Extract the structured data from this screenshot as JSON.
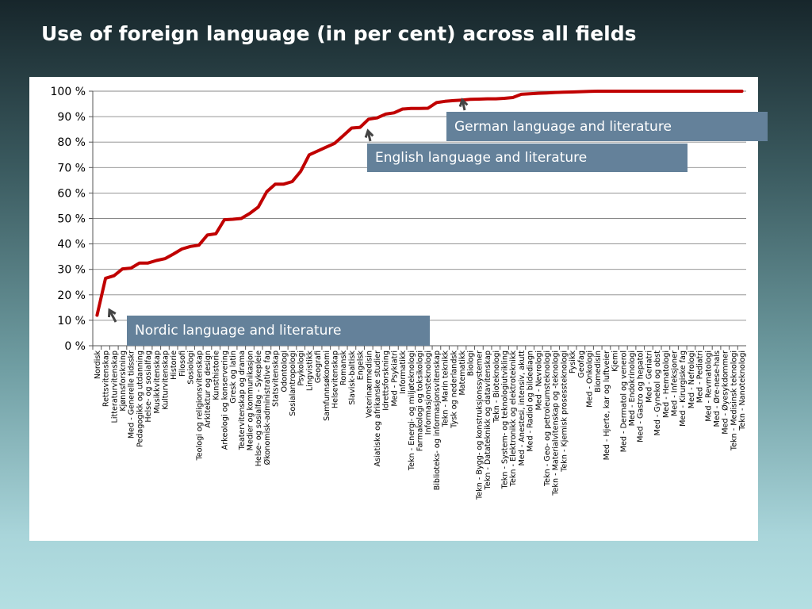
{
  "slide": {
    "title": "Use of foreign language (in per cent) across all fields"
  },
  "callouts": {
    "german": "German language and literature",
    "english": "English language and literature",
    "nordic": "Nordic language and literature"
  },
  "colors": {
    "line": "#c00000",
    "callout_bg": "#64819a",
    "arrow": "#444444"
  },
  "chart_data": {
    "type": "line",
    "title": "",
    "xlabel": "",
    "ylabel": "",
    "ylim": [
      0,
      100
    ],
    "y_ticks": [
      "0 %",
      "10 %",
      "20 %",
      "30 %",
      "40 %",
      "50 %",
      "60 %",
      "70 %",
      "80 %",
      "90 %",
      "100 %"
    ],
    "grid": true,
    "categories": [
      "Nordisk",
      "Rettsvitenskap",
      "Litteraturvitenskap",
      "Kjønnsforskning",
      "Med - Generelle tidsskr",
      "Pedagogikk og utdanning",
      "Helse- og sosialfag",
      "Musikkvitenskap",
      "Kulturvitenskap",
      "Historie",
      "Filosofi",
      "Sosiologi",
      "Teologi og religionsvitenskap",
      "Arkitektur og design",
      "Kunsthistorie",
      "Arkeologi og konservering",
      "Gresk og latin",
      "Teatervitenskap og drama",
      "Medier og kommunikasjon",
      "Helse- og sosialfag - Sykepleie",
      "Økonomisk-administrative fag",
      "Statsvitenskap",
      "Odontologi",
      "Sosialantropologi",
      "Psykologi",
      "Lingvistikk",
      "Geografi",
      "Samfunnsøkonomi",
      "Helsevitenskap",
      "Romansk",
      "Slavisk-baltisk",
      "Engelsk",
      "Veterinærmedisin",
      "Asiatiske og afrikanske studier",
      "Idrettsforskning",
      "Med - Psykiatri",
      "Informatikk",
      "Tekn - Energi- og miljøteknologi",
      "Farmakologi og toksikologi",
      "Informasjonsteknologi",
      "Biblioteks- og informasjonsvitenskap",
      "Tekn - Marin teknikk",
      "Tysk og nederlandsk",
      "Matematikk",
      "Biologi",
      "Tekn - Bygg- og konstruksjonssystemer",
      "Tekn - Datateknikk og datavitenskap",
      "Tekn - Bioteknologi",
      "Tekn - System- og teknologiutvikling",
      "Tekn - Elektronikk og elektroteknikk",
      "Med - Anestesi, intensiv, akutt",
      "Med - Radiol og bildediagn",
      "Med - Nevrologi",
      "Tekn - Geo- og petroleumsteknologi",
      "Tekn - Materialvitenskap og -teknologi",
      "Tekn - Kjemisk prosessteknologi",
      "Fysikk",
      "Geofag",
      "Med - Onkologi",
      "Biomedisin",
      "Med - Hjerte, kar og luftveier",
      "Kjemi",
      "Med - Dermatol og venerol",
      "Med - Endokrinologi",
      "Med - Gastro og hepatol",
      "Med - Geriatri",
      "Med - Gynekol og obst",
      "Med - Hematologi",
      "Med - Infeksjoner",
      "Med - Kirurgiske fag",
      "Med - Nefrologi",
      "Med - Pediatri",
      "Med - Revmatologi",
      "Med - Øre-nese-hals",
      "Med - Øyesykdommer",
      "Tekn - Medisinsk teknologi",
      "Tekn - Nanoteknologi"
    ],
    "series": [
      {
        "values": [
          12,
          26.5,
          27.5,
          30.2,
          30.5,
          32.5,
          32.5,
          33.5,
          34.2,
          36,
          38,
          39,
          39.5,
          43.5,
          44,
          49.5,
          49.7,
          50,
          52,
          54.5,
          60.5,
          63.5,
          63.5,
          64.5,
          68.5,
          75,
          76.5,
          78,
          79.5,
          82.5,
          85.5,
          85.8,
          89,
          89.5,
          91,
          91.5,
          93,
          93.2,
          93.2,
          93.3,
          95.5,
          96,
          96.3,
          96.5,
          96.8,
          96.9,
          97,
          97,
          97.2,
          97.5,
          98.8,
          99,
          99.2,
          99.3,
          99.5,
          99.6,
          99.7,
          99.8,
          99.9,
          100,
          100,
          100,
          100,
          100,
          100,
          100,
          100,
          100,
          100,
          100,
          100,
          100,
          100,
          100,
          100,
          100,
          100
        ]
      }
    ]
  }
}
